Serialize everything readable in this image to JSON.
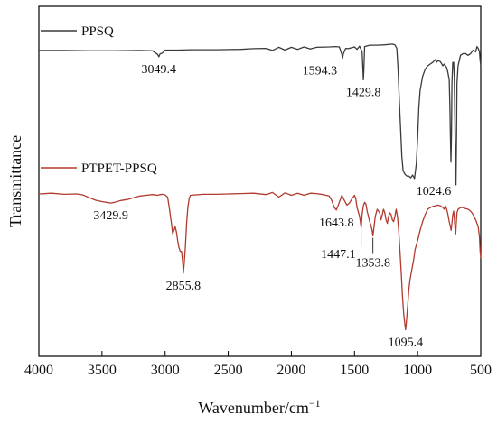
{
  "chart_data": {
    "type": "line",
    "xlabel": "Wavenumber/cm",
    "xlabel_superscript": "−1",
    "ylabel": "Transmittance",
    "xlim": [
      4000,
      500
    ],
    "ylim": [
      0,
      100
    ],
    "x_reversed": true,
    "y_ticks_shown": false,
    "xticks": [
      "4000",
      "3500",
      "3000",
      "2500",
      "2000",
      "1500",
      "1000",
      "500"
    ],
    "colors": {
      "ppsq": "#3a3a3a",
      "ptpet": "#b03a2e",
      "axis": "#000000"
    },
    "series": [
      {
        "name": "PPSQ",
        "color": "#3a3a3a",
        "points": [
          [
            4000,
            87.4
          ],
          [
            3800,
            87.4
          ],
          [
            3600,
            87.3
          ],
          [
            3400,
            87.3
          ],
          [
            3200,
            87.4
          ],
          [
            3100,
            87.3
          ],
          [
            3060,
            86.3
          ],
          [
            3049.4,
            85.6
          ],
          [
            3040,
            86.4
          ],
          [
            3020,
            86.7
          ],
          [
            3000,
            87.5
          ],
          [
            2900,
            87.5
          ],
          [
            2800,
            87.6
          ],
          [
            2600,
            87.6
          ],
          [
            2400,
            87.7
          ],
          [
            2300,
            87.9
          ],
          [
            2200,
            88.0
          ],
          [
            2150,
            87.4
          ],
          [
            2100,
            88.3
          ],
          [
            2050,
            87.5
          ],
          [
            2000,
            88.3
          ],
          [
            1950,
            87.7
          ],
          [
            1900,
            88.4
          ],
          [
            1850,
            87.8
          ],
          [
            1800,
            88.3
          ],
          [
            1700,
            88.4
          ],
          [
            1650,
            88.5
          ],
          [
            1620,
            88.4
          ],
          [
            1600,
            86.3
          ],
          [
            1594.3,
            85.2
          ],
          [
            1588,
            86.5
          ],
          [
            1570,
            88.0
          ],
          [
            1550,
            87.9
          ],
          [
            1500,
            88.4
          ],
          [
            1480,
            87.7
          ],
          [
            1460,
            88.6
          ],
          [
            1440,
            87.0
          ],
          [
            1432,
            81.0
          ],
          [
            1429.8,
            79.0
          ],
          [
            1426,
            81.5
          ],
          [
            1420,
            88.5
          ],
          [
            1380,
            88.9
          ],
          [
            1320,
            88.9
          ],
          [
            1260,
            89.0
          ],
          [
            1200,
            89.2
          ],
          [
            1180,
            89.0
          ],
          [
            1165,
            88.0
          ],
          [
            1155,
            82.0
          ],
          [
            1145,
            73.0
          ],
          [
            1135,
            65.0
          ],
          [
            1125,
            57.0
          ],
          [
            1115,
            53.0
          ],
          [
            1100,
            52.0
          ],
          [
            1085,
            51.5
          ],
          [
            1070,
            51.5
          ],
          [
            1055,
            51.0
          ],
          [
            1040,
            51.8
          ],
          [
            1024.6,
            50.8
          ],
          [
            1010,
            55.0
          ],
          [
            1000,
            62.0
          ],
          [
            990,
            71.0
          ],
          [
            980,
            76.0
          ],
          [
            960,
            80.0
          ],
          [
            940,
            82.0
          ],
          [
            920,
            83.0
          ],
          [
            900,
            83.5
          ],
          [
            880,
            84.0
          ],
          [
            860,
            84.8
          ],
          [
            850,
            84.0
          ],
          [
            840,
            84.5
          ],
          [
            820,
            84.2
          ],
          [
            800,
            83.0
          ],
          [
            790,
            83.5
          ],
          [
            770,
            82.5
          ],
          [
            760,
            81.0
          ],
          [
            750,
            79.0
          ],
          [
            745,
            72.0
          ],
          [
            740,
            62.0
          ],
          [
            736,
            55.5
          ],
          [
            732,
            63.0
          ],
          [
            728,
            78.0
          ],
          [
            722,
            84.0
          ],
          [
            715,
            84.0
          ],
          [
            710,
            80.0
          ],
          [
            704,
            65.0
          ],
          [
            700,
            52.0
          ],
          [
            696,
            49.0
          ],
          [
            692,
            63.0
          ],
          [
            688,
            78.0
          ],
          [
            680,
            83.0
          ],
          [
            660,
            86.0
          ],
          [
            640,
            86.5
          ],
          [
            620,
            86.5
          ],
          [
            600,
            86.0
          ],
          [
            580,
            86.5
          ],
          [
            560,
            87.5
          ],
          [
            540,
            87.0
          ],
          [
            530,
            88.5
          ],
          [
            520,
            88.0
          ],
          [
            510,
            87.0
          ],
          [
            505,
            84.5
          ],
          [
            500,
            83.0
          ]
        ]
      },
      {
        "name": "PTPET-PPSQ",
        "color": "#b03a2e",
        "points": [
          [
            4000,
            46.4
          ],
          [
            3900,
            46.6
          ],
          [
            3800,
            46.3
          ],
          [
            3700,
            46.4
          ],
          [
            3650,
            46.1
          ],
          [
            3600,
            45.3
          ],
          [
            3550,
            44.6
          ],
          [
            3500,
            44.2
          ],
          [
            3450,
            43.9
          ],
          [
            3429.9,
            43.8
          ],
          [
            3400,
            44.0
          ],
          [
            3350,
            44.5
          ],
          [
            3300,
            44.8
          ],
          [
            3250,
            45.3
          ],
          [
            3200,
            45.8
          ],
          [
            3150,
            46.0
          ],
          [
            3100,
            46.2
          ],
          [
            3060,
            46.0
          ],
          [
            3040,
            46.2
          ],
          [
            3020,
            46.3
          ],
          [
            3000,
            46.1
          ],
          [
            2980,
            45.5
          ],
          [
            2965,
            42.0
          ],
          [
            2950,
            38.0
          ],
          [
            2940,
            35.0
          ],
          [
            2930,
            36.0
          ],
          [
            2920,
            37.0
          ],
          [
            2910,
            35.5
          ],
          [
            2900,
            33.0
          ],
          [
            2890,
            31.0
          ],
          [
            2880,
            30.0
          ],
          [
            2870,
            30.0
          ],
          [
            2860,
            26.5
          ],
          [
            2855.8,
            23.7
          ],
          [
            2850,
            26.0
          ],
          [
            2840,
            31.0
          ],
          [
            2830,
            38.0
          ],
          [
            2820,
            42.5
          ],
          [
            2810,
            45.0
          ],
          [
            2800,
            46.0
          ],
          [
            2700,
            46.3
          ],
          [
            2600,
            46.3
          ],
          [
            2500,
            46.4
          ],
          [
            2400,
            46.5
          ],
          [
            2300,
            46.6
          ],
          [
            2200,
            46.2
          ],
          [
            2150,
            46.8
          ],
          [
            2100,
            45.5
          ],
          [
            2050,
            46.7
          ],
          [
            2000,
            46.0
          ],
          [
            1950,
            46.6
          ],
          [
            1900,
            46.0
          ],
          [
            1850,
            46.6
          ],
          [
            1800,
            46.5
          ],
          [
            1750,
            46.2
          ],
          [
            1700,
            45.8
          ],
          [
            1680,
            44.5
          ],
          [
            1660,
            42.5
          ],
          [
            1643.8,
            41.8
          ],
          [
            1625,
            43.5
          ],
          [
            1610,
            45.0
          ],
          [
            1600,
            46.0
          ],
          [
            1580,
            44.5
          ],
          [
            1560,
            43.2
          ],
          [
            1540,
            43.8
          ],
          [
            1520,
            45.0
          ],
          [
            1500,
            46.0
          ],
          [
            1490,
            45.0
          ],
          [
            1480,
            42.5
          ],
          [
            1470,
            41.2
          ],
          [
            1460,
            40.0
          ],
          [
            1447.1,
            36.8
          ],
          [
            1440,
            40.5
          ],
          [
            1430,
            43.0
          ],
          [
            1420,
            44.0
          ],
          [
            1410,
            43.5
          ],
          [
            1400,
            41.5
          ],
          [
            1390,
            40.0
          ],
          [
            1380,
            38.5
          ],
          [
            1370,
            37.5
          ],
          [
            1360,
            36.0
          ],
          [
            1353.8,
            34.4
          ],
          [
            1345,
            37.0
          ],
          [
            1335,
            40.0
          ],
          [
            1320,
            42.0
          ],
          [
            1300,
            41.0
          ],
          [
            1290,
            39.0
          ],
          [
            1280,
            40.5
          ],
          [
            1270,
            42.0
          ],
          [
            1260,
            41.0
          ],
          [
            1250,
            39.0
          ],
          [
            1240,
            38.0
          ],
          [
            1230,
            40.0
          ],
          [
            1220,
            41.0
          ],
          [
            1210,
            40.5
          ],
          [
            1200,
            39.0
          ],
          [
            1190,
            38.5
          ],
          [
            1180,
            40.0
          ],
          [
            1170,
            42.0
          ],
          [
            1160,
            40.0
          ],
          [
            1150,
            36.0
          ],
          [
            1140,
            30.0
          ],
          [
            1130,
            24.0
          ],
          [
            1120,
            17.0
          ],
          [
            1110,
            12.0
          ],
          [
            1100,
            8.8
          ],
          [
            1095.4,
            7.6
          ],
          [
            1090,
            9.5
          ],
          [
            1080,
            14.0
          ],
          [
            1070,
            19.0
          ],
          [
            1060,
            22.0
          ],
          [
            1050,
            24.0
          ],
          [
            1040,
            26.0
          ],
          [
            1030,
            28.0
          ],
          [
            1020,
            30.5
          ],
          [
            1000,
            33.0
          ],
          [
            980,
            36.0
          ],
          [
            960,
            38.5
          ],
          [
            940,
            40.5
          ],
          [
            920,
            42.0
          ],
          [
            900,
            42.5
          ],
          [
            880,
            42.8
          ],
          [
            860,
            43.0
          ],
          [
            840,
            43.2
          ],
          [
            820,
            43.0
          ],
          [
            800,
            42.5
          ],
          [
            790,
            42.0
          ],
          [
            780,
            43.0
          ],
          [
            770,
            42.0
          ],
          [
            760,
            40.5
          ],
          [
            750,
            38.5
          ],
          [
            740,
            37.0
          ],
          [
            735,
            36.0
          ],
          [
            728,
            38.0
          ],
          [
            722,
            40.5
          ],
          [
            715,
            41.5
          ],
          [
            708,
            39.0
          ],
          [
            702,
            35.5
          ],
          [
            698,
            35.0
          ],
          [
            694,
            38.0
          ],
          [
            688,
            41.0
          ],
          [
            680,
            42.0
          ],
          [
            660,
            42.5
          ],
          [
            640,
            42.5
          ],
          [
            620,
            42.2
          ],
          [
            600,
            42.0
          ],
          [
            580,
            41.5
          ],
          [
            560,
            40.5
          ],
          [
            540,
            39.0
          ],
          [
            520,
            37.0
          ],
          [
            510,
            34.0
          ],
          [
            505,
            30.0
          ],
          [
            500,
            28.0
          ]
        ]
      }
    ],
    "annotations": [
      {
        "text": "3049.4",
        "x": 3049.4,
        "y": 85.6,
        "series": "PPSQ",
        "pos": "below"
      },
      {
        "text": "1594.3",
        "x": 1594.3,
        "y": 85.2,
        "series": "PPSQ",
        "pos": "below-left"
      },
      {
        "text": "1429.8",
        "x": 1429.8,
        "y": 79.0,
        "series": "PPSQ",
        "pos": "below"
      },
      {
        "text": "1024.6",
        "x": 1024.6,
        "y": 50.8,
        "series": "PPSQ",
        "pos": "below-right"
      },
      {
        "text": "3429.9",
        "x": 3429.9,
        "y": 43.8,
        "series": "PTPET-PPSQ",
        "pos": "below"
      },
      {
        "text": "2855.8",
        "x": 2855.8,
        "y": 23.7,
        "series": "PTPET-PPSQ",
        "pos": "below"
      },
      {
        "text": "1643.8",
        "x": 1643.8,
        "y": 41.8,
        "series": "PTPET-PPSQ",
        "pos": "below"
      },
      {
        "text": "1447.1",
        "x": 1447.1,
        "y": 36.8,
        "series": "PTPET-PPSQ",
        "pos": "below-left"
      },
      {
        "text": "1353.8",
        "x": 1353.8,
        "y": 34.4,
        "series": "PTPET-PPSQ",
        "pos": "below"
      },
      {
        "text": "1095.4",
        "x": 1095.4,
        "y": 7.6,
        "series": "PTPET-PPSQ",
        "pos": "below"
      }
    ],
    "legend": {
      "placement": "inline-left",
      "entries": [
        "PPSQ",
        "PTPET-PPSQ"
      ]
    }
  }
}
